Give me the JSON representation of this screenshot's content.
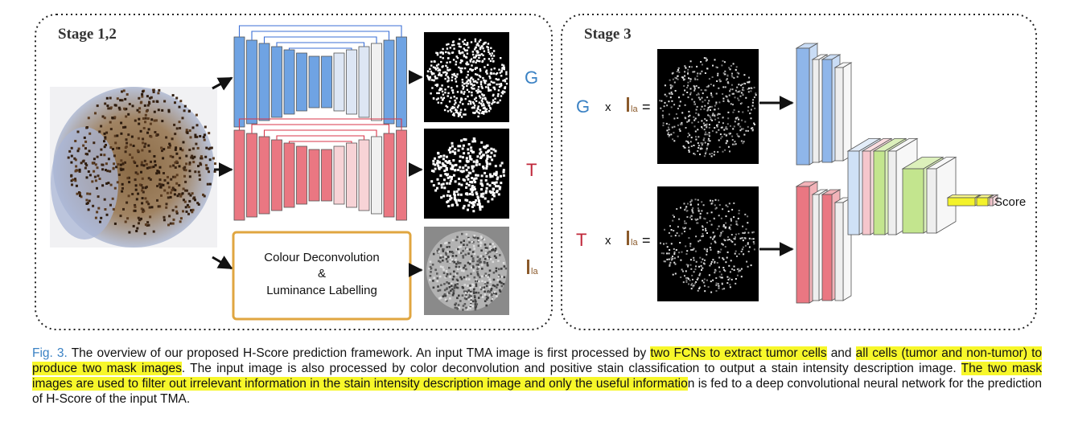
{
  "stage12": {
    "title": "Stage 1,2"
  },
  "stage3": {
    "title": "Stage 3"
  },
  "labels": {
    "g": "G",
    "t": "T",
    "ila_main": "I",
    "ila_sub": "la",
    "times": "x",
    "equals": "=",
    "score": "Score"
  },
  "deconv_box": {
    "line1": "Colour Deconvolution",
    "line2": "&",
    "line3": "Luminance Labelling"
  },
  "colors": {
    "blue_net": "#6fa3e3",
    "red_net": "#ea7782",
    "g_label": "#3b82c4",
    "t_label": "#c0273a",
    "ila_label": "#8b5a2b",
    "deconv_border": "#e0a640",
    "green_block": "#c3e58e",
    "yellow_fc": "#f3f22a",
    "highlight": "#f7f72a"
  },
  "caption": {
    "figref": "Fig. 3.",
    "p1": " The overview of our proposed H-Score prediction framework. An input TMA image is first processed by ",
    "h1": "two FCNs to extract tumor cells",
    "p2": " and ",
    "h2": "all cells (tumor and non-tumor) to produce two mask images",
    "p3": ". The input image is also processed by color deconvolution and positive stain classification to output a stain intensity description image. ",
    "h3": "The two mask images are used to filter out irrelevant information in the stain intensity description image and only the useful informatio",
    "p4": "n is fed to a deep convolutional neural network for the prediction of H-Score of the input TMA."
  }
}
